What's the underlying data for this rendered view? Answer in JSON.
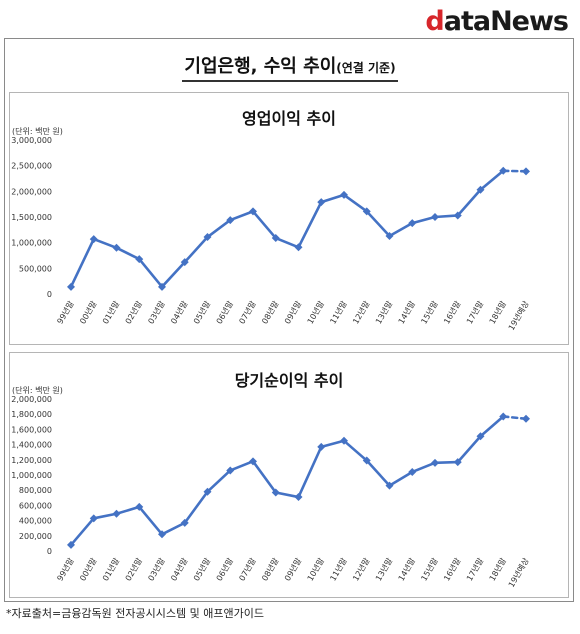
{
  "logo": {
    "first": "d",
    "rest": "ataNews"
  },
  "header": {
    "title": "기업은행, 수익 추이",
    "subtitle": "(연결 기준)"
  },
  "source": "*자료출처=금융감독원 전자공시시스템 및 애프앤가이드",
  "chart_data": [
    {
      "type": "line",
      "title": "영업이익 추이",
      "unit_label": "(단위: 백만 원)",
      "categories": [
        "99년말",
        "00년말",
        "01년말",
        "02년말",
        "03년말",
        "04년말",
        "05년말",
        "06년말",
        "07년말",
        "08년말",
        "09년말",
        "10년말",
        "11년말",
        "12년말",
        "13년말",
        "14년말",
        "15년말",
        "16년말",
        "17년말",
        "18년말",
        "19년예상"
      ],
      "values": [
        140000,
        1070000,
        900000,
        680000,
        140000,
        620000,
        1110000,
        1440000,
        1610000,
        1090000,
        910000,
        1790000,
        1930000,
        1610000,
        1130000,
        1380000,
        1500000,
        1530000,
        2030000,
        2400000,
        2390000
      ],
      "forecast_from_index": 19,
      "ylim": [
        0,
        3000000
      ],
      "yticks": [
        "0",
        "500,000",
        "1,000,000",
        "1,500,000",
        "2,000,000",
        "2,500,000",
        "3,000,000"
      ],
      "color": "#4472c4",
      "grid": false
    },
    {
      "type": "line",
      "title": "당기순이익 추이",
      "unit_label": "(단위: 백만 원)",
      "categories": [
        "99년말",
        "00년말",
        "01년말",
        "02년말",
        "03년말",
        "04년말",
        "05년말",
        "06년말",
        "07년말",
        "08년말",
        "09년말",
        "10년말",
        "11년말",
        "12년말",
        "13년말",
        "14년말",
        "15년말",
        "16년말",
        "17년말",
        "18년말",
        "19년예상"
      ],
      "values": [
        80000,
        430000,
        490000,
        580000,
        220000,
        370000,
        780000,
        1060000,
        1180000,
        770000,
        710000,
        1370000,
        1450000,
        1190000,
        860000,
        1040000,
        1160000,
        1170000,
        1510000,
        1770000,
        1740000
      ],
      "forecast_from_index": 19,
      "ylim": [
        0,
        2000000
      ],
      "yticks": [
        "0",
        "200,000",
        "400,000",
        "600,000",
        "800,000",
        "1,000,000",
        "1,200,000",
        "1,400,000",
        "1,600,000",
        "1,800,000",
        "2,000,000"
      ],
      "color": "#4472c4",
      "grid": false
    }
  ]
}
